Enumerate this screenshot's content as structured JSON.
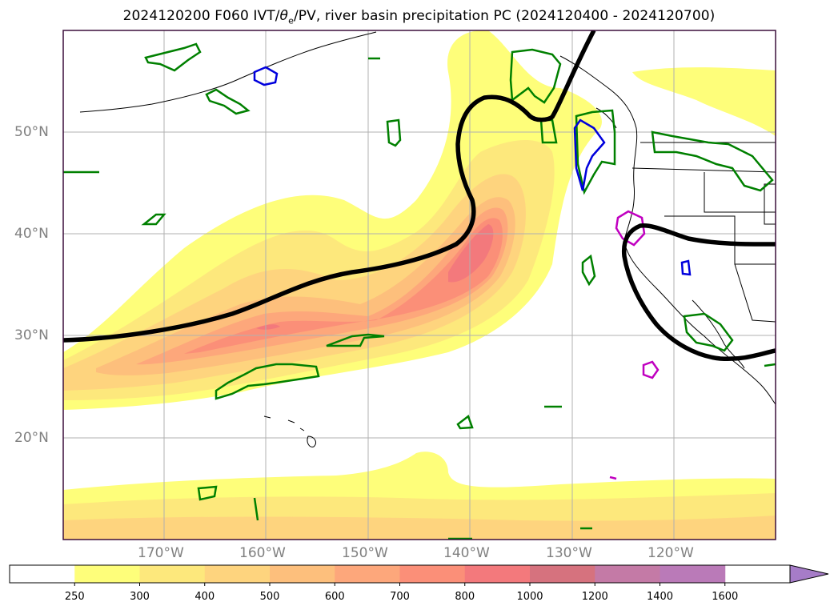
{
  "title": {
    "prefix": "2024120200 F060 IVT/",
    "theta": "θ",
    "sub": "e",
    "suffix": "/PV, river basin precipitation PC (2024120400 - 2024120700)"
  },
  "map": {
    "lat_labels": [
      "50°N",
      "40°N",
      "30°N",
      "20°N"
    ],
    "lon_labels": [
      "170°W",
      "160°W",
      "150°W",
      "140°W",
      "130°W",
      "120°W"
    ],
    "colors": {
      "frame": "#3b0f3b",
      "grid": "#b0b0b0",
      "coast": "#000000",
      "pv_contour": "#000000",
      "green_contour": "#008000",
      "blue_contour": "#0000dd",
      "magenta_contour": "#c000c0"
    }
  },
  "colorbar": {
    "labels": [
      "250",
      "300",
      "400",
      "500",
      "600",
      "700",
      "800",
      "1000",
      "1200",
      "1400",
      "1600"
    ],
    "colors": [
      "#ffffff",
      "#fefe7a",
      "#fde87c",
      "#fed47e",
      "#fdbf7c",
      "#fda77b",
      "#fb8f78",
      "#f3797c",
      "#d6727e",
      "#c47aa6",
      "#ba7ab8",
      "#a67cc8"
    ]
  }
}
